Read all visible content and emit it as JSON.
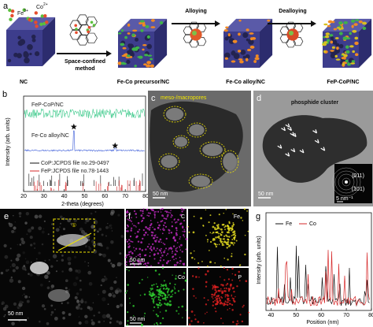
{
  "panel_a": {
    "label": "a",
    "ions": {
      "co": "Co",
      "co_charge": "2+",
      "fe": "Fe",
      "fe_charge": "3+"
    },
    "stages": [
      "NC",
      "Fe-Co precursor/NC",
      "Fe-Co alloy/NC",
      "FeP-CoP/NC"
    ],
    "arrows": [
      [
        "Space-confined",
        "method"
      ],
      [
        "Alloying"
      ],
      [
        "Dealloying"
      ]
    ]
  },
  "panel_b": {
    "label": "b",
    "y_label": "Intensity (arb. units)",
    "x_label": "2-theta (degrees)",
    "xlim": [
      20,
      80
    ],
    "xticks": [
      20,
      30,
      40,
      50,
      60,
      70,
      80
    ],
    "traces": [
      "FeP-CoP/NC",
      "Fe-Co alloy/NC"
    ],
    "references": [
      "CoP:JCPDS file no.29-0497",
      "FeP:JCPDS file no.78-1443"
    ]
  },
  "panel_c": {
    "label": "c",
    "annotation": "meso-/macropores",
    "scale_bar": "50 nm"
  },
  "panel_d": {
    "label": "d",
    "annotation": "phosphide cluster",
    "inset": {
      "planes": [
        "(011)",
        "(101)"
      ],
      "scale_bar": "5 nm⁻¹"
    },
    "scale_bar": "50 nm"
  },
  "panel_e": {
    "label": "e",
    "region": "①",
    "scale_bar": "50 nm"
  },
  "panel_f": {
    "label": "f",
    "maps": [
      {
        "element": "C",
        "scale_bar": "50 nm"
      },
      {
        "element": "Fe"
      },
      {
        "element": "Co",
        "scale_bar": "50 nm"
      },
      {
        "element": "P"
      }
    ]
  },
  "panel_g": {
    "label": "g",
    "y_label": "Intensity (arb. units)",
    "x_label": "Position (nm)",
    "xlim": [
      38,
      80
    ],
    "xticks": [
      40,
      50,
      60,
      70,
      80
    ],
    "legend": [
      {
        "name": "Fe",
        "color": "#111111"
      },
      {
        "name": "Co",
        "color": "#d62728"
      }
    ]
  }
}
